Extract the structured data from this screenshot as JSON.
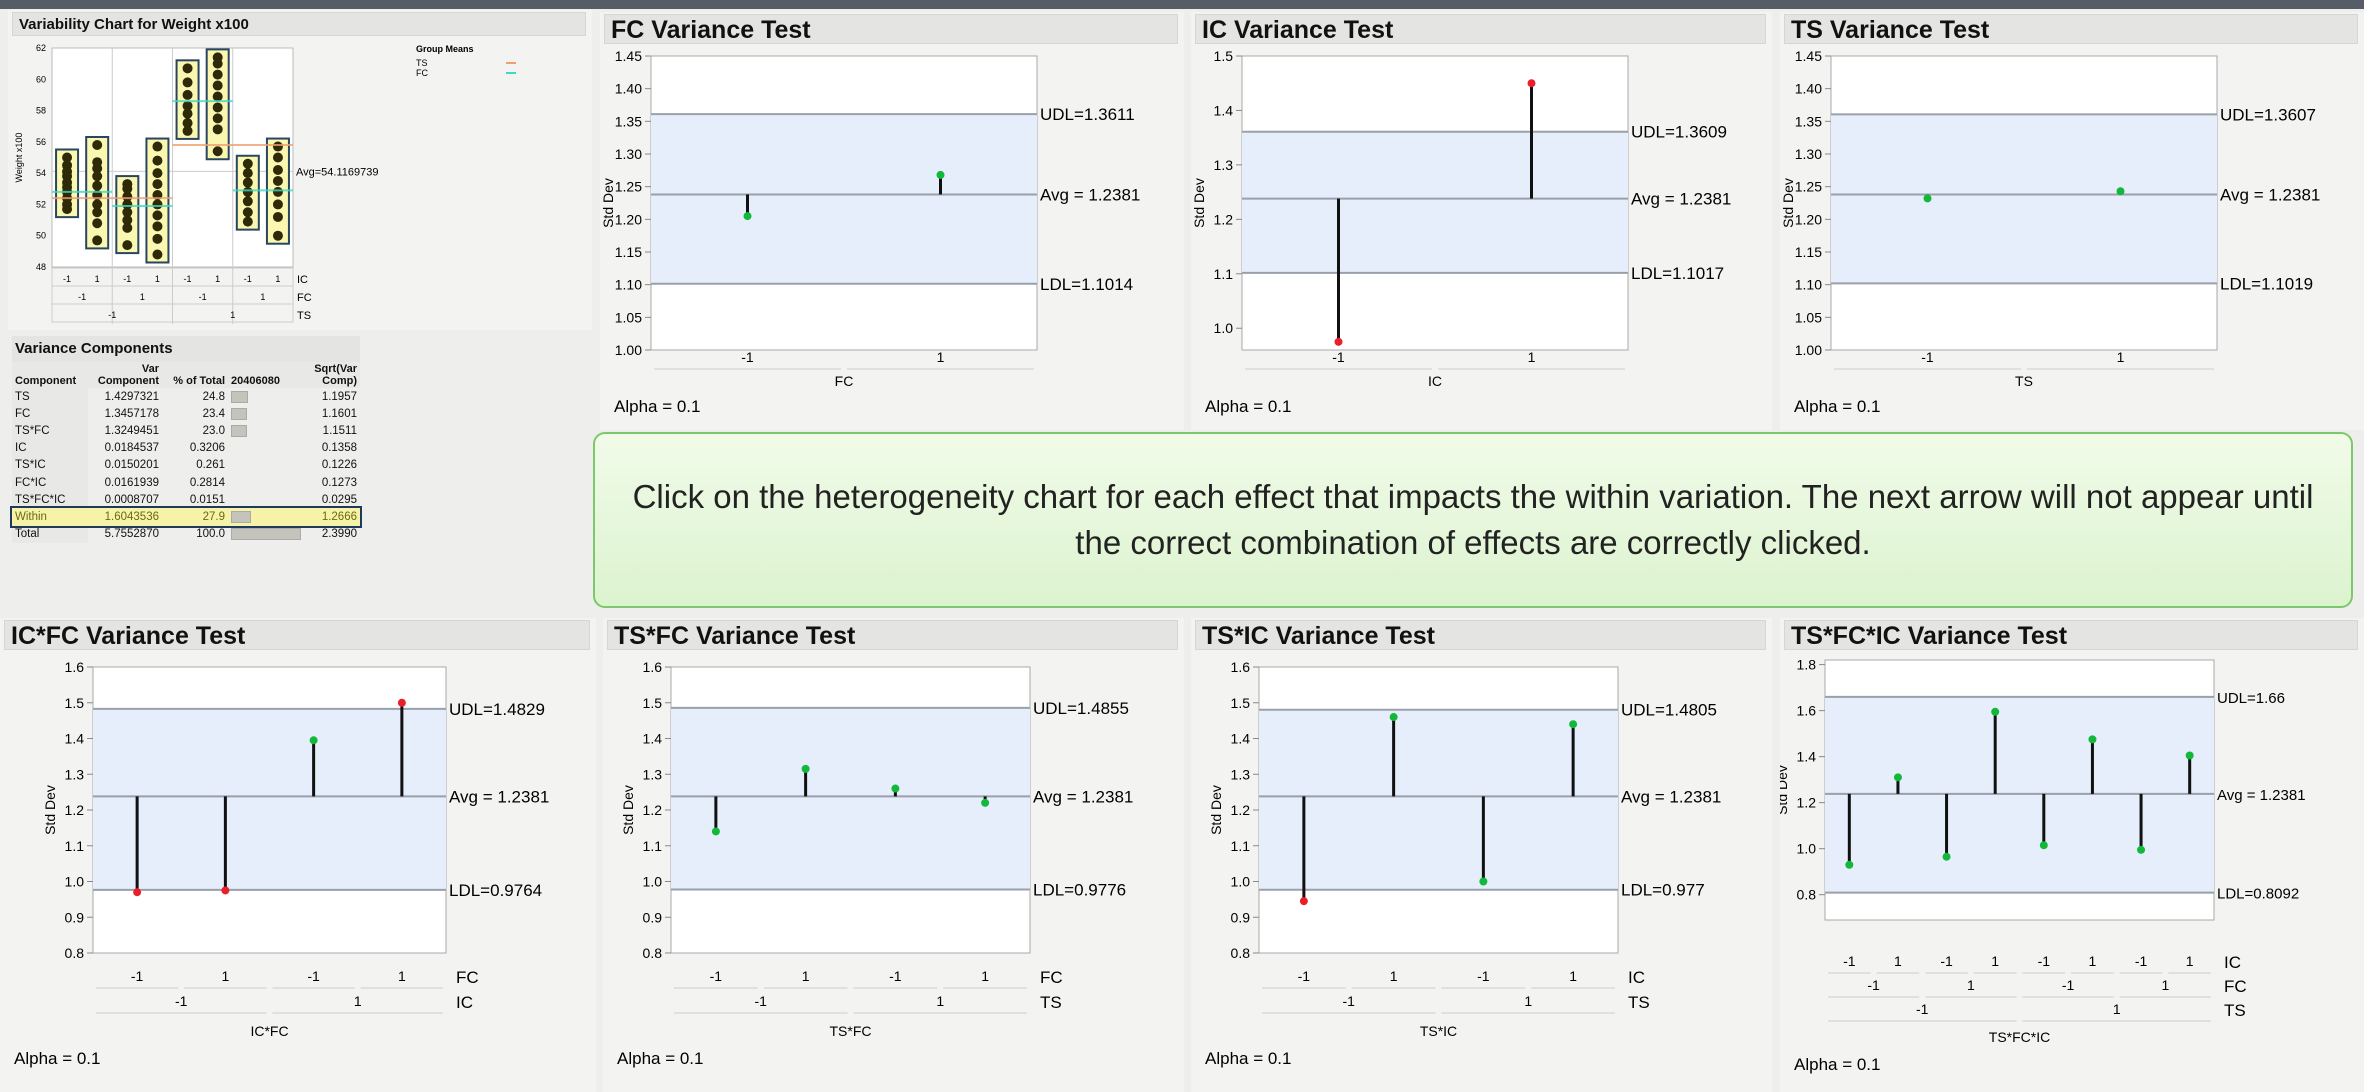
{
  "message": "Click on the heterogeneity chart for each effect that impacts the within variation.  The next arrow will not appear until the correct combination of effects are correctly clicked.",
  "variability": {
    "title": "Variability Chart for Weight x100",
    "ylabel": "Weight x100",
    "ylim": [
      48,
      62
    ],
    "yticks": [
      "48",
      "50",
      "52",
      "54",
      "56",
      "58",
      "60",
      "62"
    ],
    "avg": 54.1169739,
    "avg_label": "Avg=54.1169739",
    "legend_title": "Group Means",
    "legend": [
      {
        "name": "TS",
        "color": "#f0a070"
      },
      {
        "name": "FC",
        "color": "#40d8c0"
      }
    ],
    "rows": [
      {
        "name": "IC",
        "labels": [
          "-1",
          "1",
          "-1",
          "1",
          "-1",
          "1",
          "-1",
          "1"
        ]
      },
      {
        "name": "FC",
        "labels": [
          "-1",
          "1",
          "-1",
          "1"
        ]
      },
      {
        "name": "TS",
        "labels": [
          "-1",
          "1"
        ]
      }
    ],
    "groups": [
      [
        51.7,
        52.0,
        52.4,
        52.8,
        53.1,
        53.4,
        53.8,
        54.1,
        54.5,
        55.0
      ],
      [
        49.7,
        50.8,
        51.5,
        52.0,
        52.6,
        53.2,
        53.8,
        54.3,
        54.7,
        55.8
      ],
      [
        49.4,
        50.5,
        51.0,
        51.5,
        52.0,
        52.5,
        53.0,
        53.3
      ],
      [
        48.8,
        49.8,
        50.6,
        51.3,
        52.0,
        52.6,
        53.3,
        54.0,
        54.8,
        55.7
      ],
      [
        56.7,
        57.2,
        57.8,
        58.3,
        59.0,
        59.8,
        60.7
      ],
      [
        55.4,
        56.8,
        57.5,
        58.2,
        58.9,
        59.6,
        60.3,
        61.0,
        61.4
      ],
      [
        50.9,
        51.5,
        52.2,
        52.8,
        53.4,
        54.0,
        54.6
      ],
      [
        50.0,
        51.2,
        52.0,
        52.8,
        53.5,
        54.2,
        55.0,
        55.7
      ]
    ],
    "ts_means": [
      52.4,
      55.8
    ],
    "fc_means": [
      52.8,
      51.9,
      58.6,
      52.9
    ]
  },
  "variance_components": {
    "title": "Variance Components",
    "headers": [
      "Component",
      "Var Component",
      "% of Total",
      "20406080",
      "Sqrt(Var Comp)"
    ],
    "rows": [
      {
        "c": "TS",
        "v": "1.4297321",
        "p": "24.8",
        "pct": 24.8,
        "s": "1.1957"
      },
      {
        "c": "FC",
        "v": "1.3457178",
        "p": "23.4",
        "pct": 23.4,
        "s": "1.1601"
      },
      {
        "c": "TS*FC",
        "v": "1.3249451",
        "p": "23.0",
        "pct": 23.0,
        "s": "1.1511"
      },
      {
        "c": "IC",
        "v": "0.0184537",
        "p": "0.3206",
        "pct": 0.32,
        "s": "0.1358"
      },
      {
        "c": "TS*IC",
        "v": "0.0150201",
        "p": "0.261",
        "pct": 0.26,
        "s": "0.1226"
      },
      {
        "c": "FC*IC",
        "v": "0.0161939",
        "p": "0.2814",
        "pct": 0.28,
        "s": "0.1273"
      },
      {
        "c": "TS*FC*IC",
        "v": "0.0008707",
        "p": "0.0151",
        "pct": 0.02,
        "s": "0.0295"
      },
      {
        "c": "Within",
        "v": "1.6043536",
        "p": "27.9",
        "pct": 27.9,
        "s": "1.2666",
        "highlight": true
      },
      {
        "c": "Total",
        "v": "5.7552870",
        "p": "100.0",
        "pct": 100,
        "s": "2.3990"
      }
    ]
  },
  "chart_data": [
    {
      "type": "line",
      "title": "FC Variance Test",
      "ylabel": "Std Dev",
      "xlabel": "FC",
      "ylim": [
        1.0,
        1.45
      ],
      "yticks": [
        "1.00",
        "1.05",
        "1.10",
        "1.15",
        "1.20",
        "1.25",
        "1.30",
        "1.35",
        "1.40",
        "1.45"
      ],
      "rows": [
        {
          "name": "",
          "labels": [
            "-1",
            "1"
          ]
        }
      ],
      "values": [
        1.205,
        1.268
      ],
      "udl": 1.3611,
      "avg": 1.2381,
      "ldl": 1.1014,
      "udl_label": "UDL=1.3611",
      "avg_label": "Avg = 1.2381",
      "ldl_label": "LDL=1.1014",
      "alpha": "Alpha = 0.1"
    },
    {
      "type": "line",
      "title": "IC Variance Test",
      "ylabel": "Std Dev",
      "xlabel": "IC",
      "ylim": [
        0.96,
        1.5
      ],
      "yticks": [
        "1.0",
        "1.1",
        "1.2",
        "1.3",
        "1.4",
        "1.5"
      ],
      "rows": [
        {
          "name": "",
          "labels": [
            "-1",
            "1"
          ]
        }
      ],
      "values": [
        0.975,
        1.45
      ],
      "udl": 1.3609,
      "avg": 1.2381,
      "ldl": 1.1017,
      "udl_label": "UDL=1.3609",
      "avg_label": "Avg = 1.2381",
      "ldl_label": "LDL=1.1017",
      "alpha": "Alpha = 0.1"
    },
    {
      "type": "line",
      "title": "TS Variance Test",
      "ylabel": "Std Dev",
      "xlabel": "TS",
      "ylim": [
        1.0,
        1.45
      ],
      "yticks": [
        "1.00",
        "1.05",
        "1.10",
        "1.15",
        "1.20",
        "1.25",
        "1.30",
        "1.35",
        "1.40",
        "1.45"
      ],
      "rows": [
        {
          "name": "",
          "labels": [
            "-1",
            "1"
          ]
        }
      ],
      "values": [
        1.232,
        1.243
      ],
      "udl": 1.3607,
      "avg": 1.2381,
      "ldl": 1.1019,
      "udl_label": "UDL=1.3607",
      "avg_label": "Avg = 1.2381",
      "ldl_label": "LDL=1.1019",
      "alpha": "Alpha = 0.1"
    },
    {
      "type": "line",
      "title": "IC*FC Variance Test",
      "ylabel": "Std Dev",
      "xlabel": "IC*FC",
      "ylim": [
        0.8,
        1.6
      ],
      "yticks": [
        "0.8",
        "0.9",
        "1.0",
        "1.1",
        "1.2",
        "1.3",
        "1.4",
        "1.5",
        "1.6"
      ],
      "rows": [
        {
          "name": "FC",
          "labels": [
            "-1",
            "1",
            "-1",
            "1"
          ]
        },
        {
          "name": "IC",
          "labels": [
            "-1",
            "1"
          ]
        }
      ],
      "values": [
        0.97,
        0.975,
        1.395,
        1.5
      ],
      "udl": 1.4829,
      "avg": 1.2381,
      "ldl": 0.9764,
      "udl_label": "UDL=1.4829",
      "avg_label": "Avg = 1.2381",
      "ldl_label": "LDL=0.9764",
      "alpha": "Alpha = 0.1"
    },
    {
      "type": "line",
      "title": "TS*FC Variance Test",
      "ylabel": "Std Dev",
      "xlabel": "TS*FC",
      "ylim": [
        0.8,
        1.6
      ],
      "yticks": [
        "0.8",
        "0.9",
        "1.0",
        "1.1",
        "1.2",
        "1.3",
        "1.4",
        "1.5",
        "1.6"
      ],
      "rows": [
        {
          "name": "FC",
          "labels": [
            "-1",
            "1",
            "-1",
            "1"
          ]
        },
        {
          "name": "TS",
          "labels": [
            "-1",
            "1"
          ]
        }
      ],
      "values": [
        1.14,
        1.315,
        1.26,
        1.22
      ],
      "udl": 1.4855,
      "avg": 1.2381,
      "ldl": 0.9776,
      "udl_label": "UDL=1.4855",
      "avg_label": "Avg = 1.2381",
      "ldl_label": "LDL=0.9776",
      "alpha": "Alpha = 0.1"
    },
    {
      "type": "line",
      "title": "TS*IC Variance Test",
      "ylabel": "Std Dev",
      "xlabel": "TS*IC",
      "ylim": [
        0.8,
        1.6
      ],
      "yticks": [
        "0.8",
        "0.9",
        "1.0",
        "1.1",
        "1.2",
        "1.3",
        "1.4",
        "1.5",
        "1.6"
      ],
      "rows": [
        {
          "name": "IC",
          "labels": [
            "-1",
            "1",
            "-1",
            "1"
          ]
        },
        {
          "name": "TS",
          "labels": [
            "-1",
            "1"
          ]
        }
      ],
      "values": [
        0.945,
        1.46,
        1.0,
        1.44
      ],
      "udl": 1.4805,
      "avg": 1.2381,
      "ldl": 0.977,
      "udl_label": "UDL=1.4805",
      "avg_label": "Avg = 1.2381",
      "ldl_label": "LDL=0.977",
      "alpha": "Alpha = 0.1"
    },
    {
      "type": "line",
      "title": "TS*FC*IC Variance Test",
      "ylabel": "Std Dev",
      "xlabel": "TS*FC*IC",
      "ylim": [
        0.69,
        1.82
      ],
      "yticks": [
        "0.8",
        "1.0",
        "1.2",
        "1.4",
        "1.6",
        "1.8"
      ],
      "rows": [
        {
          "name": "IC",
          "labels": [
            "-1",
            "1",
            "-1",
            "1",
            "-1",
            "1",
            "-1",
            "1"
          ]
        },
        {
          "name": "FC",
          "labels": [
            "-1",
            "1",
            "-1",
            "1"
          ]
        },
        {
          "name": "TS",
          "labels": [
            "-1",
            "1"
          ]
        }
      ],
      "values": [
        0.93,
        1.31,
        0.965,
        1.595,
        1.015,
        1.475,
        0.995,
        1.405
      ],
      "udl": 1.66,
      "avg": 1.2381,
      "ldl": 0.8092,
      "udl_label": "UDL=1.66",
      "avg_label": "Avg = 1.2381",
      "ldl_label": "LDL=0.8092",
      "alpha": "Alpha = 0.1"
    }
  ]
}
